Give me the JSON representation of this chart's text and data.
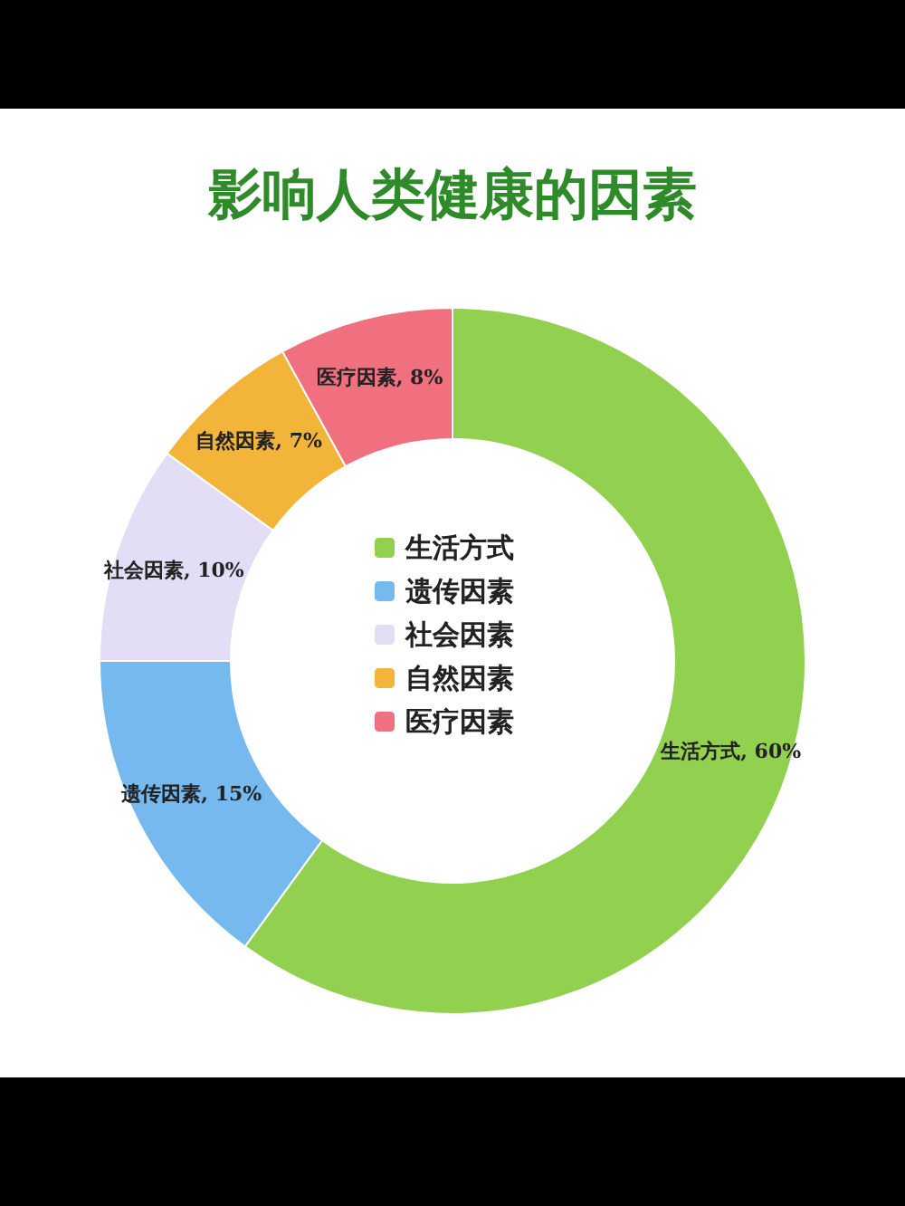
{
  "chart_data": {
    "type": "donut",
    "title": "影响人类健康的因素",
    "categories": [
      "生活方式",
      "遗传因素",
      "社会因素",
      "自然因素",
      "医疗因素"
    ],
    "values": [
      60,
      15,
      10,
      7,
      8
    ],
    "value_labels": [
      "生活方式, 60%",
      "遗传因素, 15%",
      "社会因素, 10%",
      "自然因素, 7%",
      "医疗因素, 8%"
    ],
    "colors": [
      "#92d050",
      "#75b9ef",
      "#e3def5",
      "#f2b53a",
      "#f0707f"
    ],
    "legend": "center"
  }
}
